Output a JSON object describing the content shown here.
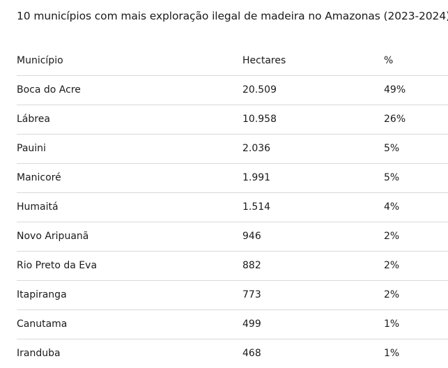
{
  "chart_data": {
    "type": "table",
    "title": "10 municípios com mais exploração ilegal de madeira no Amazonas (2023-2024)",
    "columns": [
      "Município",
      "Hectares",
      "%"
    ],
    "rows": [
      [
        "Boca do Acre",
        "20.509",
        "49%"
      ],
      [
        "Lábrea",
        "10.958",
        "26%"
      ],
      [
        "Pauini",
        "2.036",
        "5%"
      ],
      [
        "Manicoré",
        "1.991",
        "5%"
      ],
      [
        "Humaitá",
        "1.514",
        "4%"
      ],
      [
        "Novo Aripuanã",
        "946",
        "2%"
      ],
      [
        "Rio Preto da Eva",
        "882",
        "2%"
      ],
      [
        "Itapiranga",
        "773",
        "2%"
      ],
      [
        "Canutama",
        "499",
        "1%"
      ],
      [
        "Iranduba",
        "468",
        "1%"
      ]
    ]
  }
}
